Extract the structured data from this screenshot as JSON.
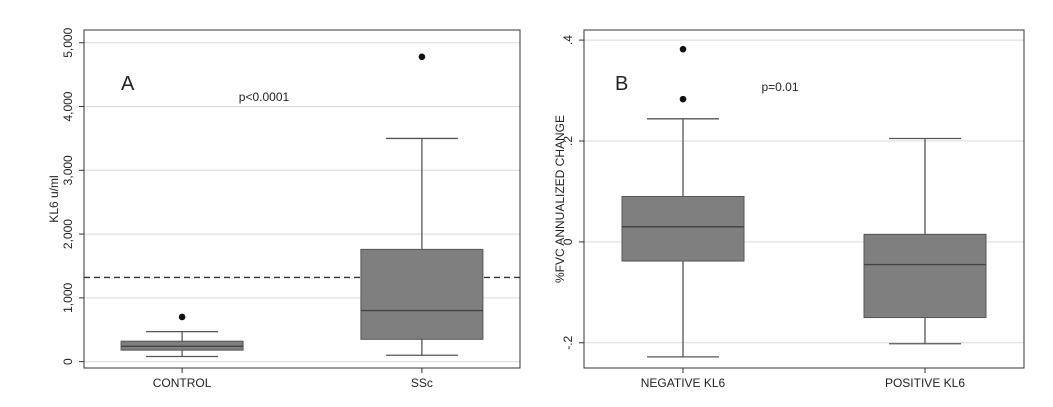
{
  "colors": {
    "box_fill": "#7f7f7f",
    "grid": "#d9d9d9",
    "frame": "#333333",
    "line": "#555555"
  },
  "chart_data": [
    {
      "type": "box",
      "panel_label": "A",
      "annotation": "p<0.0001",
      "ylabel": "KL6 u/ml",
      "xlabel": "",
      "ylim": [
        -100,
        5200
      ],
      "yticks": [
        0,
        1000,
        2000,
        3000,
        4000,
        5000
      ],
      "ytick_labels": [
        "0",
        "1,000",
        "2,000",
        "3,000",
        "4,000",
        "5,000"
      ],
      "grid": true,
      "reference_line": {
        "y": 1320,
        "style": "dashed"
      },
      "categories": [
        "CONTROL",
        "SSc"
      ],
      "boxes": [
        {
          "whisker_low": 80,
          "q1": 180,
          "median": 240,
          "q3": 320,
          "whisker_high": 470,
          "outliers": [
            700
          ]
        },
        {
          "whisker_low": 100,
          "q1": 350,
          "median": 800,
          "q3": 1760,
          "whisker_high": 3500,
          "outliers": [
            4780
          ]
        }
      ]
    },
    {
      "type": "box",
      "panel_label": "B",
      "annotation": "p=0.01",
      "ylabel": "%FVC ANNUALIZED CHANGE",
      "xlabel": "",
      "ylim": [
        -0.25,
        0.42
      ],
      "yticks": [
        -0.2,
        0,
        0.2,
        0.4
      ],
      "ytick_labels": [
        "-.2",
        "0",
        ".2",
        ".4"
      ],
      "grid": true,
      "categories": [
        "NEGATIVE KL6",
        "POSITIVE KL6"
      ],
      "boxes": [
        {
          "whisker_low": -0.228,
          "q1": -0.038,
          "median": 0.03,
          "q3": 0.09,
          "whisker_high": 0.244,
          "outliers": [
            0.283,
            0.382
          ]
        },
        {
          "whisker_low": -0.202,
          "q1": -0.15,
          "median": -0.045,
          "q3": 0.015,
          "whisker_high": 0.205,
          "outliers": []
        }
      ]
    }
  ]
}
